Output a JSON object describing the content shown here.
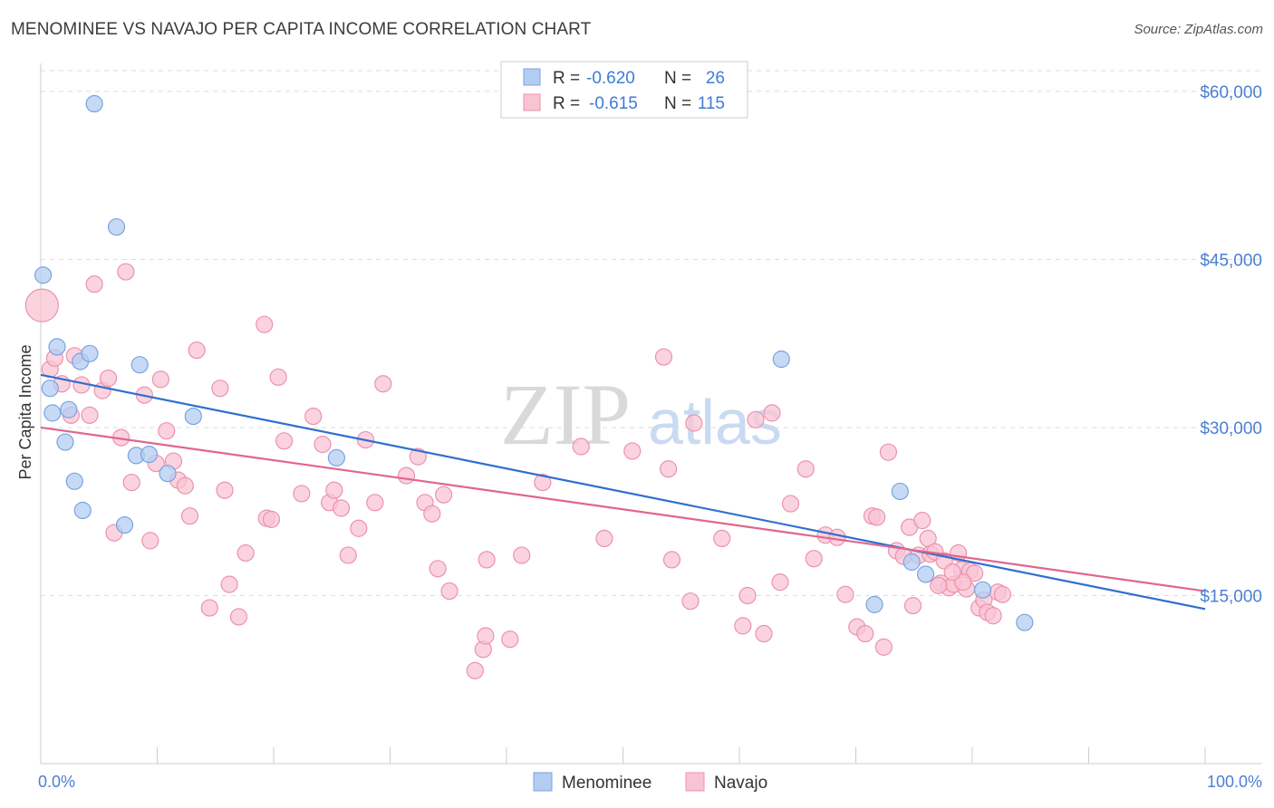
{
  "title": "MENOMINEE VS NAVAJO PER CAPITA INCOME CORRELATION CHART",
  "source": "Source: ZipAtlas.com",
  "watermark": {
    "part1": "ZIP",
    "part2": "atlas"
  },
  "colors": {
    "menominee_fill": "#b3cdf2",
    "menominee_stroke": "#7aa3e0",
    "menominee_line": "#2f6fd0",
    "navajo_fill": "#f8c4d4",
    "navajo_stroke": "#ec92ae",
    "navajo_line": "#e0668e",
    "grid": "#dddddd",
    "axis_text": "#4a7fd4"
  },
  "stats": [
    {
      "label_r": "R = ",
      "r": "-0.620",
      "label_n": "N = ",
      "n": "26"
    },
    {
      "label_r": "R = ",
      "r": "-0.615",
      "label_n": "N = ",
      "n": "115"
    }
  ],
  "legend": [
    "Menominee",
    "Navajo"
  ],
  "chart_data": {
    "type": "scatter",
    "ylabel": "Per Capita Income",
    "xlim": [
      0,
      100
    ],
    "ylim": [
      0,
      62500
    ],
    "x_tick_labels": [
      "0.0%",
      "100.0%"
    ],
    "y_ticks": [
      15000,
      30000,
      45000,
      60000
    ],
    "y_tick_labels": [
      "$15,000",
      "$30,000",
      "$45,000",
      "$60,000"
    ],
    "grid": true,
    "legend_position": "bottom-center",
    "series": [
      {
        "name": "Menominee",
        "trend": [
          [
            0,
            34700
          ],
          [
            100,
            13800
          ]
        ],
        "points": [
          [
            0.2,
            43600
          ],
          [
            0.8,
            33500
          ],
          [
            1.0,
            31300
          ],
          [
            1.4,
            37200
          ],
          [
            2.1,
            28700
          ],
          [
            2.4,
            31600
          ],
          [
            2.9,
            25200
          ],
          [
            3.4,
            35900
          ],
          [
            3.6,
            22600
          ],
          [
            4.2,
            36600
          ],
          [
            4.6,
            58900
          ],
          [
            6.5,
            47900
          ],
          [
            7.2,
            21300
          ],
          [
            8.2,
            27500
          ],
          [
            8.5,
            35600
          ],
          [
            9.3,
            27600
          ],
          [
            10.9,
            25900
          ],
          [
            13.1,
            31000
          ],
          [
            25.4,
            27300
          ],
          [
            63.6,
            36100
          ],
          [
            71.6,
            14200
          ],
          [
            73.8,
            24300
          ],
          [
            74.8,
            18000
          ],
          [
            76.0,
            16900
          ],
          [
            80.9,
            15500
          ],
          [
            84.5,
            12600
          ]
        ]
      },
      {
        "name": "Navajo",
        "trend": [
          [
            0,
            30000
          ],
          [
            100,
            15400
          ]
        ],
        "points": [
          [
            0.1,
            40900
          ],
          [
            0.8,
            35200
          ],
          [
            1.2,
            36200
          ],
          [
            1.8,
            33900
          ],
          [
            2.6,
            31100
          ],
          [
            2.9,
            36400
          ],
          [
            3.5,
            33800
          ],
          [
            4.2,
            31100
          ],
          [
            4.6,
            42800
          ],
          [
            5.3,
            33300
          ],
          [
            5.8,
            34400
          ],
          [
            6.3,
            20600
          ],
          [
            6.9,
            29100
          ],
          [
            7.3,
            43900
          ],
          [
            7.8,
            25100
          ],
          [
            8.9,
            32900
          ],
          [
            9.4,
            19900
          ],
          [
            9.9,
            26800
          ],
          [
            10.3,
            34300
          ],
          [
            10.8,
            29700
          ],
          [
            11.4,
            27000
          ],
          [
            11.8,
            25300
          ],
          [
            12.4,
            24800
          ],
          [
            12.8,
            22100
          ],
          [
            13.4,
            36900
          ],
          [
            14.5,
            13900
          ],
          [
            15.4,
            33500
          ],
          [
            15.8,
            24400
          ],
          [
            16.2,
            16000
          ],
          [
            17.0,
            13100
          ],
          [
            17.6,
            18800
          ],
          [
            19.2,
            39200
          ],
          [
            19.4,
            21900
          ],
          [
            19.8,
            21800
          ],
          [
            20.4,
            34500
          ],
          [
            20.9,
            28800
          ],
          [
            22.4,
            24100
          ],
          [
            23.4,
            31000
          ],
          [
            24.2,
            28500
          ],
          [
            24.8,
            23300
          ],
          [
            25.2,
            24400
          ],
          [
            25.8,
            22800
          ],
          [
            26.4,
            18600
          ],
          [
            27.3,
            21000
          ],
          [
            27.9,
            28900
          ],
          [
            28.7,
            23300
          ],
          [
            29.4,
            33900
          ],
          [
            31.4,
            25700
          ],
          [
            32.4,
            27400
          ],
          [
            33.0,
            23300
          ],
          [
            33.6,
            22300
          ],
          [
            34.1,
            17400
          ],
          [
            34.6,
            24000
          ],
          [
            35.1,
            15400
          ],
          [
            37.3,
            8300
          ],
          [
            38.0,
            10200
          ],
          [
            38.2,
            11400
          ],
          [
            38.3,
            18200
          ],
          [
            40.3,
            11100
          ],
          [
            41.3,
            18600
          ],
          [
            43.1,
            25100
          ],
          [
            46.4,
            28300
          ],
          [
            48.4,
            20100
          ],
          [
            50.8,
            27900
          ],
          [
            53.5,
            36300
          ],
          [
            53.9,
            26300
          ],
          [
            54.2,
            18200
          ],
          [
            55.8,
            14500
          ],
          [
            56.1,
            30400
          ],
          [
            58.5,
            20100
          ],
          [
            60.3,
            12300
          ],
          [
            60.7,
            15000
          ],
          [
            61.4,
            30700
          ],
          [
            62.1,
            11600
          ],
          [
            62.8,
            31300
          ],
          [
            63.5,
            16200
          ],
          [
            64.4,
            23200
          ],
          [
            65.7,
            26300
          ],
          [
            66.4,
            18300
          ],
          [
            67.4,
            20400
          ],
          [
            68.4,
            20200
          ],
          [
            69.1,
            15100
          ],
          [
            70.1,
            12200
          ],
          [
            70.8,
            11600
          ],
          [
            71.4,
            22100
          ],
          [
            71.8,
            22000
          ],
          [
            72.4,
            10400
          ],
          [
            72.8,
            27800
          ],
          [
            73.5,
            19000
          ],
          [
            74.1,
            18500
          ],
          [
            74.6,
            21100
          ],
          [
            74.9,
            14100
          ],
          [
            75.4,
            18600
          ],
          [
            75.7,
            21700
          ],
          [
            76.2,
            20100
          ],
          [
            76.4,
            18700
          ],
          [
            76.8,
            18900
          ],
          [
            77.3,
            16100
          ],
          [
            77.6,
            18100
          ],
          [
            78.0,
            15700
          ],
          [
            78.4,
            16000
          ],
          [
            78.8,
            18800
          ],
          [
            79.1,
            17300
          ],
          [
            79.5,
            15600
          ],
          [
            79.8,
            17200
          ],
          [
            80.2,
            17000
          ],
          [
            80.6,
            13900
          ],
          [
            81.0,
            14600
          ],
          [
            81.3,
            13500
          ],
          [
            81.8,
            13200
          ],
          [
            82.2,
            15300
          ],
          [
            82.6,
            15100
          ],
          [
            79.2,
            16200
          ],
          [
            78.3,
            17100
          ],
          [
            77.1,
            15900
          ]
        ]
      }
    ]
  }
}
